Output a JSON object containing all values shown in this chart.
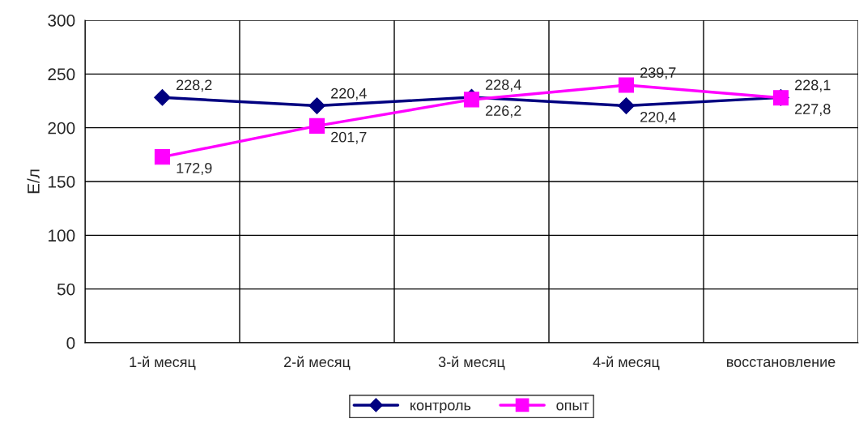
{
  "chart_data": {
    "type": "line",
    "ylabel": "Е/л",
    "categories": [
      "1-й месяц",
      "2-й месяц",
      "3-й месяц",
      "4-й месяц",
      "восстановление"
    ],
    "series": [
      {
        "name": "контроль",
        "color": "#000080",
        "marker": "diamond",
        "values": [
          228.2,
          220.4,
          228.4,
          220.4,
          228.1
        ],
        "value_labels": [
          "228,2",
          "220,4",
          "228,4",
          "220,4",
          "228,1"
        ]
      },
      {
        "name": "опыт",
        "color": "#ff00ff",
        "marker": "square",
        "values": [
          172.9,
          201.7,
          226.2,
          239.7,
          227.8
        ],
        "value_labels": [
          "172,9",
          "201,7",
          "226,2",
          "239,7",
          "227,8"
        ]
      }
    ],
    "ylim": [
      0,
      300
    ],
    "yticks": [
      0,
      50,
      100,
      150,
      200,
      250,
      300
    ],
    "grid": true,
    "legend": "bottom"
  }
}
